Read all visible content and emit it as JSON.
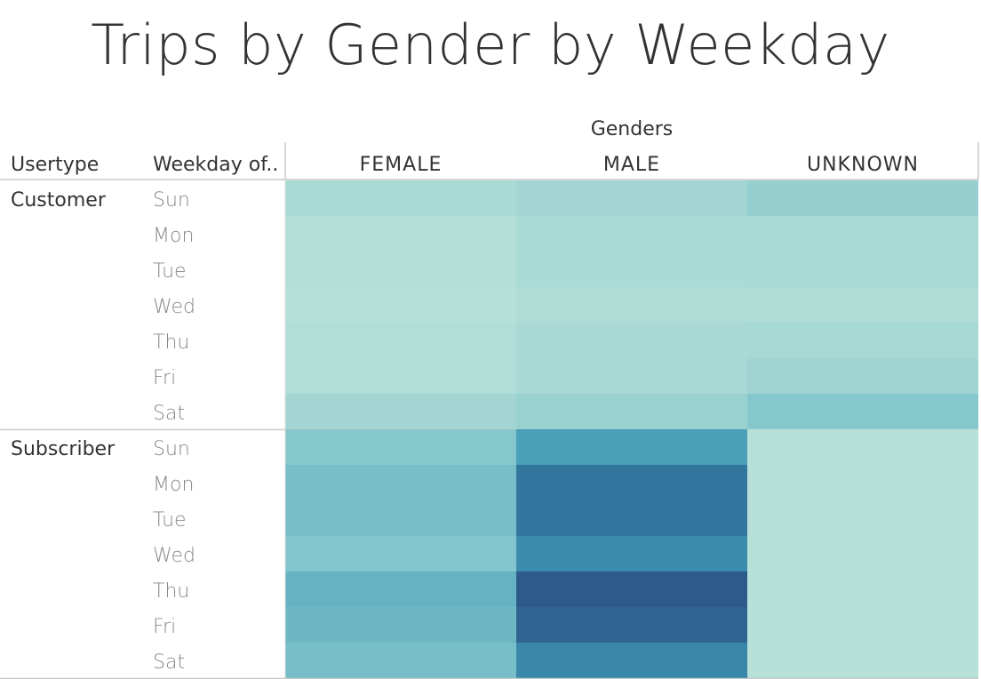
{
  "chart_data": {
    "type": "heatmap",
    "title": "Trips by Gender by Weekday",
    "column_group_label": "Genders",
    "row_headers": [
      "Usertype",
      "Weekday of.."
    ],
    "columns": [
      "FEMALE",
      "MALE",
      "UNKNOWN"
    ],
    "groups": [
      {
        "name": "Customer",
        "rows": [
          "Sun",
          "Mon",
          "Tue",
          "Wed",
          "Thu",
          "Fri",
          "Sat"
        ],
        "values": [
          [
            0.15,
            0.2,
            0.28
          ],
          [
            0.08,
            0.14,
            0.15
          ],
          [
            0.08,
            0.14,
            0.15
          ],
          [
            0.06,
            0.11,
            0.11
          ],
          [
            0.09,
            0.16,
            0.18
          ],
          [
            0.09,
            0.16,
            0.22
          ],
          [
            0.2,
            0.26,
            0.38
          ]
        ]
      },
      {
        "name": "Subscriber",
        "rows": [
          "Sun",
          "Mon",
          "Tue",
          "Wed",
          "Thu",
          "Fri",
          "Sat"
        ],
        "values": [
          [
            0.38,
            0.62,
            0.05
          ],
          [
            0.44,
            0.86,
            0.05
          ],
          [
            0.44,
            0.86,
            0.05
          ],
          [
            0.4,
            0.73,
            0.05
          ],
          [
            0.51,
            1.0,
            0.05
          ],
          [
            0.48,
            0.95,
            0.05
          ],
          [
            0.44,
            0.76,
            0.05
          ]
        ]
      }
    ],
    "color_scale": [
      "#bde5da",
      "#a3d6d3",
      "#83c5cc",
      "#4ca3bb",
      "#3480a5",
      "#2d5a8a"
    ]
  }
}
